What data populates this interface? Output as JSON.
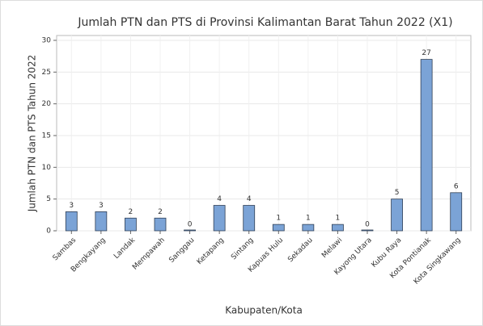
{
  "chart_data": {
    "type": "bar",
    "title": "Jumlah PTN dan PTS di Provinsi Kalimantan Barat Tahun 2022 (X1)",
    "x_label": "Kabupaten/Kota",
    "y_label": "Jumlah PTN dan PTS Tahun 2022",
    "categories": [
      "Sambas",
      "Bengkayang",
      "Landak",
      "Mempawah",
      "Sanggau",
      "Ketapang",
      "Sintang",
      "Kapuas Hulu",
      "Sekadau",
      "Melawi",
      "Kayong Utara",
      "Kubu Raya",
      "Kota Pontianak",
      "Kota Singkawang"
    ],
    "values": [
      3,
      3,
      2,
      2,
      0,
      4,
      4,
      1,
      1,
      1,
      0,
      5,
      27,
      6
    ],
    "color": "#7ba3d6",
    "ylim": [
      0,
      30
    ],
    "yticks": [
      0,
      5,
      10,
      15,
      20,
      25,
      30
    ],
    "grid": true
  }
}
